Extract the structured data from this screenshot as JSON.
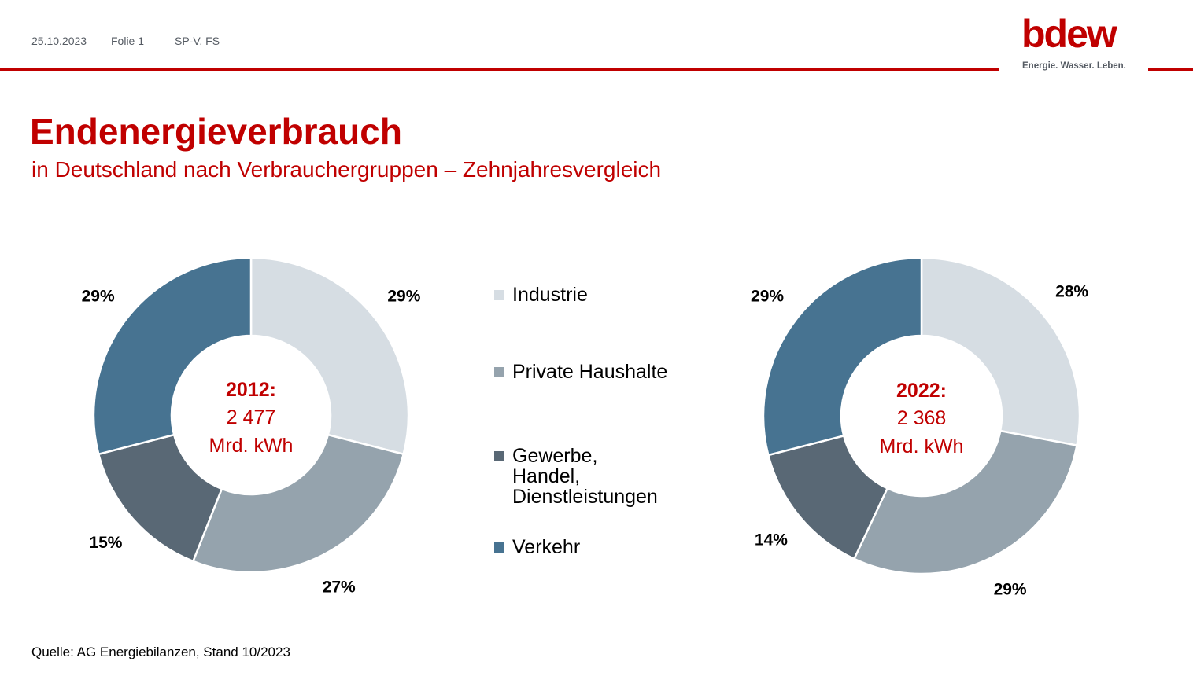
{
  "header": {
    "date": "25.10.2023",
    "slide": "Folie 1",
    "department": "SP-V, FS"
  },
  "logo": {
    "word": "bdew",
    "claim": "Energie. Wasser. Leben.",
    "color": "#c00000"
  },
  "title": "Endenergieverbrauch",
  "subtitle": "in Deutschland nach Verbrauchergruppen – Zehnjahresvergleich",
  "source": "Quelle: AG Energiebilanzen, Stand 10/2023",
  "chart_data": [
    {
      "type": "pie",
      "variant": "donut",
      "center_label": "2012:",
      "center_value": [
        "2 477",
        "Mrd. kWh"
      ],
      "categories": [
        "Industrie",
        "Private Haushalte",
        "Gewerbe, Handel, Dienstleistungen",
        "Verkehr"
      ],
      "values": [
        29,
        27,
        15,
        29
      ],
      "labels": [
        "29%",
        "27%",
        "15%",
        "29%"
      ],
      "colors": [
        "#d6dde3",
        "#95a3ad",
        "#596875",
        "#477391"
      ]
    },
    {
      "type": "pie",
      "variant": "donut",
      "center_label": "2022:",
      "center_value": [
        "2 368",
        "Mrd. kWh"
      ],
      "categories": [
        "Industrie",
        "Private Haushalte",
        "Gewerbe, Handel, Dienstleistungen",
        "Verkehr"
      ],
      "values": [
        28,
        29,
        14,
        29
      ],
      "labels": [
        "28%",
        "29%",
        "14%",
        "29%"
      ],
      "colors": [
        "#d6dde3",
        "#95a3ad",
        "#596875",
        "#477391"
      ]
    }
  ],
  "legend": {
    "placement": "center",
    "items": [
      {
        "lines": [
          "Industrie"
        ],
        "color": "#d6dde3"
      },
      {
        "lines": [
          "Private Haushalte"
        ],
        "color": "#95a3ad"
      },
      {
        "lines": [
          "Gewerbe,",
          "Handel,",
          "Dienstleistungen"
        ],
        "color": "#596875"
      },
      {
        "lines": [
          "Verkehr"
        ],
        "color": "#477391"
      }
    ]
  }
}
